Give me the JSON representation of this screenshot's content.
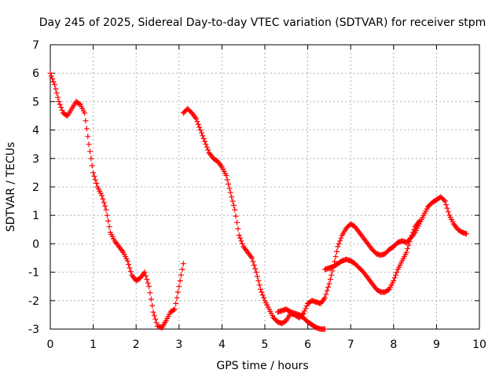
{
  "chart_data": {
    "type": "scatter",
    "title": "Day 245 of 2025, Sidereal Day-to-day VTEC variation (SDTVAR) for receiver stpm",
    "xlabel": "GPS time / hours",
    "ylabel": "SDTVAR / TECUs",
    "xlim": [
      0,
      10
    ],
    "ylim": [
      -3,
      7
    ],
    "xticks": [
      "0",
      "1",
      "2",
      "3",
      "4",
      "5",
      "6",
      "7",
      "8",
      "9",
      "10"
    ],
    "yticks": [
      "-3",
      "-2",
      "-1",
      "0",
      "1",
      "2",
      "3",
      "4",
      "5",
      "6",
      "7"
    ],
    "grid": true,
    "marker": "plus",
    "series": [
      {
        "color": "#ff0000",
        "segments": [
          [
            [
              0.0,
              6.0
            ],
            [
              0.1,
              5.6
            ],
            [
              0.2,
              5.0
            ],
            [
              0.3,
              4.6
            ],
            [
              0.4,
              4.5
            ],
            [
              0.5,
              4.75
            ],
            [
              0.6,
              5.0
            ],
            [
              0.7,
              4.9
            ],
            [
              0.8,
              4.6
            ],
            [
              0.9,
              3.5
            ],
            [
              1.0,
              2.5
            ],
            [
              1.1,
              2.0
            ],
            [
              1.2,
              1.7
            ],
            [
              1.3,
              1.2
            ],
            [
              1.4,
              0.4
            ],
            [
              1.5,
              0.1
            ],
            [
              1.6,
              -0.1
            ],
            [
              1.7,
              -0.3
            ],
            [
              1.8,
              -0.6
            ],
            [
              1.9,
              -1.1
            ],
            [
              2.0,
              -1.3
            ],
            [
              2.1,
              -1.2
            ],
            [
              2.2,
              -1.0
            ],
            [
              2.3,
              -1.5
            ],
            [
              2.4,
              -2.4
            ],
            [
              2.5,
              -2.9
            ],
            [
              2.6,
              -2.95
            ],
            [
              2.7,
              -2.7
            ],
            [
              2.8,
              -2.4
            ],
            [
              2.9,
              -2.3
            ],
            [
              3.0,
              -1.5
            ],
            [
              3.1,
              -0.7
            ]
          ],
          [
            [
              3.1,
              4.6
            ],
            [
              3.2,
              4.75
            ],
            [
              3.3,
              4.6
            ],
            [
              3.4,
              4.4
            ],
            [
              3.5,
              4.0
            ],
            [
              3.6,
              3.6
            ],
            [
              3.7,
              3.2
            ],
            [
              3.8,
              3.0
            ],
            [
              3.9,
              2.9
            ],
            [
              4.0,
              2.7
            ],
            [
              4.1,
              2.4
            ],
            [
              4.2,
              1.8
            ],
            [
              4.3,
              1.2
            ],
            [
              4.4,
              0.3
            ],
            [
              4.5,
              -0.1
            ],
            [
              4.6,
              -0.3
            ],
            [
              4.7,
              -0.5
            ],
            [
              4.8,
              -1.0
            ],
            [
              4.9,
              -1.6
            ],
            [
              5.0,
              -2.0
            ],
            [
              5.1,
              -2.3
            ],
            [
              5.2,
              -2.6
            ],
            [
              5.3,
              -2.75
            ],
            [
              5.4,
              -2.8
            ],
            [
              5.5,
              -2.7
            ],
            [
              5.6,
              -2.45
            ],
            [
              5.7,
              -2.5
            ],
            [
              5.8,
              -2.6
            ],
            [
              5.9,
              -2.45
            ],
            [
              6.0,
              -2.1
            ],
            [
              6.1,
              -2.0
            ],
            [
              6.2,
              -2.05
            ],
            [
              6.3,
              -2.1
            ],
            [
              6.4,
              -1.9
            ],
            [
              6.5,
              -1.4
            ],
            [
              6.6,
              -0.8
            ],
            [
              6.7,
              -0.1
            ],
            [
              6.8,
              0.3
            ],
            [
              6.9,
              0.55
            ],
            [
              7.0,
              0.7
            ],
            [
              7.1,
              0.6
            ],
            [
              7.2,
              0.4
            ],
            [
              7.3,
              0.2
            ],
            [
              7.4,
              0.0
            ],
            [
              7.5,
              -0.2
            ],
            [
              7.6,
              -0.35
            ],
            [
              7.7,
              -0.4
            ],
            [
              7.8,
              -0.35
            ],
            [
              7.9,
              -0.2
            ],
            [
              8.0,
              -0.1
            ],
            [
              8.1,
              0.05
            ],
            [
              8.2,
              0.1
            ],
            [
              8.3,
              0.05
            ],
            [
              8.4,
              0.2
            ],
            [
              8.5,
              0.4
            ],
            [
              8.6,
              0.7
            ],
            [
              8.7,
              1.0
            ],
            [
              8.8,
              1.3
            ],
            [
              8.9,
              1.45
            ],
            [
              9.0,
              1.55
            ],
            [
              9.1,
              1.65
            ],
            [
              9.2,
              1.5
            ],
            [
              9.3,
              1.0
            ],
            [
              9.4,
              0.7
            ],
            [
              9.5,
              0.5
            ],
            [
              9.6,
              0.4
            ],
            [
              9.7,
              0.35
            ]
          ],
          [
            [
              5.3,
              -2.4
            ],
            [
              5.4,
              -2.35
            ],
            [
              5.5,
              -2.3
            ],
            [
              5.6,
              -2.4
            ],
            [
              5.7,
              -2.45
            ],
            [
              5.8,
              -2.5
            ],
            [
              5.9,
              -2.6
            ],
            [
              6.0,
              -2.75
            ],
            [
              6.1,
              -2.85
            ],
            [
              6.2,
              -2.95
            ],
            [
              6.3,
              -3.0
            ],
            [
              6.4,
              -3.0
            ]
          ],
          [
            [
              6.4,
              -0.9
            ],
            [
              6.5,
              -0.85
            ],
            [
              6.6,
              -0.8
            ],
            [
              6.7,
              -0.7
            ],
            [
              6.8,
              -0.6
            ],
            [
              6.9,
              -0.55
            ],
            [
              7.0,
              -0.6
            ],
            [
              7.1,
              -0.7
            ],
            [
              7.2,
              -0.85
            ],
            [
              7.3,
              -1.0
            ],
            [
              7.4,
              -1.2
            ],
            [
              7.5,
              -1.4
            ],
            [
              7.6,
              -1.6
            ],
            [
              7.7,
              -1.7
            ],
            [
              7.8,
              -1.7
            ],
            [
              7.9,
              -1.6
            ],
            [
              8.0,
              -1.3
            ],
            [
              8.1,
              -0.9
            ],
            [
              8.2,
              -0.6
            ],
            [
              8.3,
              -0.3
            ],
            [
              8.4,
              0.2
            ],
            [
              8.5,
              0.6
            ],
            [
              8.6,
              0.8
            ]
          ]
        ]
      }
    ]
  }
}
